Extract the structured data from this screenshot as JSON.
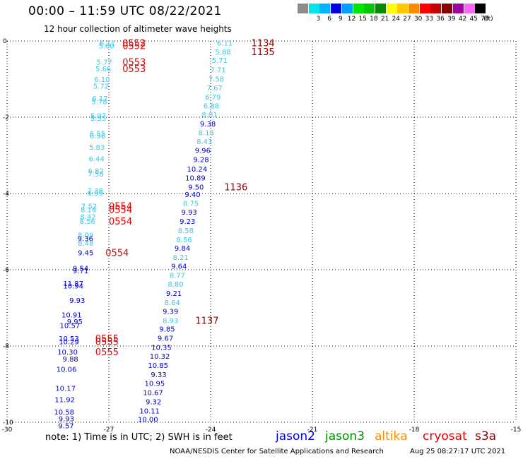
{
  "header": {
    "title": "00:00 – 11:59 UTC 08/22/2021",
    "subtitle": "12 hour collection of altimeter wave heights"
  },
  "colorbar": {
    "unit_label": "(ft)",
    "bins": [
      {
        "label": "",
        "color": "#8c8c8c"
      },
      {
        "label": "3",
        "color": "#00e6e6"
      },
      {
        "label": "6",
        "color": "#00b4ff"
      },
      {
        "label": "9",
        "color": "#0000e6"
      },
      {
        "label": "12",
        "color": "#00a0ff"
      },
      {
        "label": "15",
        "color": "#00e600"
      },
      {
        "label": "18",
        "color": "#00c800"
      },
      {
        "label": "21",
        "color": "#008c00"
      },
      {
        "label": "24",
        "color": "#ffff00"
      },
      {
        "label": "27",
        "color": "#ffc800"
      },
      {
        "label": "30",
        "color": "#ff8c00"
      },
      {
        "label": "33",
        "color": "#ff0000"
      },
      {
        "label": "36",
        "color": "#c80000"
      },
      {
        "label": "39",
        "color": "#8c0000"
      },
      {
        "label": "42",
        "color": "#a000a0"
      },
      {
        "label": "45",
        "color": "#ff64ff"
      },
      {
        "label": "70",
        "color": "#000000"
      }
    ]
  },
  "chart_data": {
    "type": "scatter",
    "xlim": [
      -30,
      -15
    ],
    "ylim": [
      -10,
      0
    ],
    "x_ticks": [
      "-30",
      "-27",
      "-24",
      "-21",
      "-18",
      "-15"
    ],
    "y_ticks": [
      "0",
      "-2",
      "-4",
      "-6",
      "-8",
      "-10"
    ],
    "grid": true,
    "swh_labels": [
      {
        "x": -26.81,
        "y": -0.05,
        "v": "6.11",
        "c": "#3cc8e6"
      },
      {
        "x": -26.84,
        "y": -0.12,
        "v": "5.60",
        "c": "#3cc8e6"
      },
      {
        "x": -26.9,
        "y": -0.55,
        "v": "5.77",
        "c": "#3cc8e6"
      },
      {
        "x": -26.93,
        "y": -0.72,
        "v": "5.66",
        "c": "#3cc8e6"
      },
      {
        "x": -26.97,
        "y": -1.0,
        "v": "6.10",
        "c": "#3cc8e6"
      },
      {
        "x": -27.0,
        "y": -1.18,
        "v": "5.72",
        "c": "#3cc8e6"
      },
      {
        "x": -27.03,
        "y": -1.5,
        "v": "6.17",
        "c": "#3cc8e6"
      },
      {
        "x": -27.05,
        "y": -1.58,
        "v": "5.78",
        "c": "#3cc8e6"
      },
      {
        "x": -27.08,
        "y": -1.95,
        "v": "5.97",
        "c": "#3cc8e6"
      },
      {
        "x": -27.08,
        "y": -2.02,
        "v": "5.55",
        "c": "#3cc8e6"
      },
      {
        "x": -27.1,
        "y": -2.42,
        "v": "6.55",
        "c": "#3cc8e6"
      },
      {
        "x": -27.1,
        "y": -2.48,
        "v": "6.96",
        "c": "#3cc8e6"
      },
      {
        "x": -27.12,
        "y": -2.78,
        "v": "5.83",
        "c": "#3cc8e6"
      },
      {
        "x": -27.13,
        "y": -3.08,
        "v": "6.44",
        "c": "#3cc8e6"
      },
      {
        "x": -27.15,
        "y": -3.4,
        "v": "6.82",
        "c": "#3cc8e6"
      },
      {
        "x": -27.15,
        "y": -3.48,
        "v": "7.58",
        "c": "#3cc8e6"
      },
      {
        "x": -27.17,
        "y": -3.92,
        "v": "7.38",
        "c": "#3cc8e6"
      },
      {
        "x": -27.17,
        "y": -3.98,
        "v": "6.99",
        "c": "#3cc8e6"
      },
      {
        "x": -27.35,
        "y": -4.32,
        "v": "7.52",
        "c": "#3cc8e6"
      },
      {
        "x": -27.37,
        "y": -4.42,
        "v": "8.16",
        "c": "#3cc8e6"
      },
      {
        "x": -27.38,
        "y": -4.6,
        "v": "8.42",
        "c": "#3cc8e6"
      },
      {
        "x": -27.4,
        "y": -4.72,
        "v": "8.56",
        "c": "#3cc8e6"
      },
      {
        "x": -27.45,
        "y": -5.08,
        "v": "8.09",
        "c": "#3cc8e6"
      },
      {
        "x": -27.46,
        "y": -5.18,
        "v": "9.36",
        "c": "#0000c8"
      },
      {
        "x": -27.45,
        "y": -5.3,
        "v": "8.48",
        "c": "#3cc8e6"
      },
      {
        "x": -27.45,
        "y": -5.55,
        "v": "9.45",
        "c": "#0000c8"
      },
      {
        "x": -27.6,
        "y": -5.95,
        "v": "9.54",
        "c": "#0000c8"
      },
      {
        "x": -27.6,
        "y": -6.02,
        "v": "9.71",
        "c": "#0000c8"
      },
      {
        "x": -27.75,
        "y": -6.35,
        "v": "11.87",
        "c": "#0000c8"
      },
      {
        "x": -27.75,
        "y": -6.42,
        "v": "10.94",
        "c": "#0000c8"
      },
      {
        "x": -27.7,
        "y": -6.8,
        "v": "9.93",
        "c": "#0000c8"
      },
      {
        "x": -27.8,
        "y": -7.18,
        "v": "10.91",
        "c": "#0000c8"
      },
      {
        "x": -27.77,
        "y": -7.35,
        "v": "9.95",
        "c": "#0000c8"
      },
      {
        "x": -27.85,
        "y": -7.45,
        "v": "10.57",
        "c": "#0000c8"
      },
      {
        "x": -27.88,
        "y": -7.8,
        "v": "10.53",
        "c": "#0000c8"
      },
      {
        "x": -27.88,
        "y": -7.88,
        "v": "10.29",
        "c": "#0000c8"
      },
      {
        "x": -27.92,
        "y": -8.15,
        "v": "10.30",
        "c": "#0000c8"
      },
      {
        "x": -27.9,
        "y": -8.33,
        "v": "9.88",
        "c": "#0000c8"
      },
      {
        "x": -27.95,
        "y": -8.6,
        "v": "10.06",
        "c": "#0000c8"
      },
      {
        "x": -27.98,
        "y": -9.1,
        "v": "10.17",
        "c": "#0000c8"
      },
      {
        "x": -28.0,
        "y": -9.4,
        "v": "11.92",
        "c": "#0000c8"
      },
      {
        "x": -28.02,
        "y": -9.72,
        "v": "10.58",
        "c": "#0000c8"
      },
      {
        "x": -28.02,
        "y": -9.9,
        "v": "9.93",
        "c": "#0000c8"
      },
      {
        "x": -28.03,
        "y": -10.08,
        "v": "9.57",
        "c": "#0000c8"
      },
      {
        "x": -23.35,
        "y": -0.05,
        "v": "6.11",
        "c": "#3cc8e6"
      },
      {
        "x": -23.4,
        "y": -0.28,
        "v": "5.88",
        "c": "#3cc8e6"
      },
      {
        "x": -23.5,
        "y": -0.5,
        "v": "5.71",
        "c": "#3cc8e6"
      },
      {
        "x": -23.55,
        "y": -0.75,
        "v": "7.71",
        "c": "#3cc8e6"
      },
      {
        "x": -23.6,
        "y": -0.99,
        "v": "7.58",
        "c": "#3cc8e6"
      },
      {
        "x": -23.65,
        "y": -1.22,
        "v": "7.67",
        "c": "#3cc8e6"
      },
      {
        "x": -23.7,
        "y": -1.46,
        "v": "6.79",
        "c": "#3cc8e6"
      },
      {
        "x": -23.75,
        "y": -1.69,
        "v": "6.88",
        "c": "#3cc8e6"
      },
      {
        "x": -23.8,
        "y": -1.93,
        "v": "8.01",
        "c": "#3cc8e6"
      },
      {
        "x": -23.85,
        "y": -2.17,
        "v": "9.38",
        "c": "#0000c8"
      },
      {
        "x": -23.9,
        "y": -2.4,
        "v": "8.18",
        "c": "#3cc8e6"
      },
      {
        "x": -23.95,
        "y": -2.63,
        "v": "8.43",
        "c": "#3cc8e6"
      },
      {
        "x": -24.0,
        "y": -2.86,
        "v": "9.96",
        "c": "#0000c8"
      },
      {
        "x": -24.05,
        "y": -3.1,
        "v": "9.28",
        "c": "#0000c8"
      },
      {
        "x": -24.1,
        "y": -3.35,
        "v": "10.24",
        "c": "#0000c8"
      },
      {
        "x": -24.15,
        "y": -3.58,
        "v": "10.89",
        "c": "#0000c8"
      },
      {
        "x": -24.2,
        "y": -3.82,
        "v": "9.50",
        "c": "#0000c8"
      },
      {
        "x": -24.3,
        "y": -4.02,
        "v": "9.40",
        "c": "#0000c8"
      },
      {
        "x": -24.35,
        "y": -4.25,
        "v": "8.75",
        "c": "#3cc8e6"
      },
      {
        "x": -24.4,
        "y": -4.48,
        "v": "9.93",
        "c": "#0000c8"
      },
      {
        "x": -24.45,
        "y": -4.72,
        "v": "9.23",
        "c": "#0000c8"
      },
      {
        "x": -24.5,
        "y": -4.96,
        "v": "8.58",
        "c": "#3cc8e6"
      },
      {
        "x": -24.55,
        "y": -5.2,
        "v": "8.56",
        "c": "#3cc8e6"
      },
      {
        "x": -24.6,
        "y": -5.43,
        "v": "9.84",
        "c": "#0000c8"
      },
      {
        "x": -24.65,
        "y": -5.67,
        "v": "8.21",
        "c": "#3cc8e6"
      },
      {
        "x": -24.7,
        "y": -5.9,
        "v": "9.64",
        "c": "#0000c8"
      },
      {
        "x": -24.75,
        "y": -6.14,
        "v": "8.77",
        "c": "#3cc8e6"
      },
      {
        "x": -24.8,
        "y": -6.37,
        "v": "8.80",
        "c": "#3cc8e6"
      },
      {
        "x": -24.85,
        "y": -6.61,
        "v": "9.21",
        "c": "#0000c8"
      },
      {
        "x": -24.9,
        "y": -6.85,
        "v": "8.64",
        "c": "#3cc8e6"
      },
      {
        "x": -24.95,
        "y": -7.08,
        "v": "9.39",
        "c": "#0000c8"
      },
      {
        "x": -24.95,
        "y": -7.32,
        "v": "8.93",
        "c": "#3cc8e6"
      },
      {
        "x": -25.05,
        "y": -7.55,
        "v": "9.85",
        "c": "#0000c8"
      },
      {
        "x": -25.1,
        "y": -7.79,
        "v": "9.67",
        "c": "#0000c8"
      },
      {
        "x": -25.15,
        "y": -8.03,
        "v": "10.35",
        "c": "#0000c8"
      },
      {
        "x": -25.2,
        "y": -8.26,
        "v": "10.32",
        "c": "#0000c8"
      },
      {
        "x": -25.25,
        "y": -8.5,
        "v": "10.85",
        "c": "#0000c8"
      },
      {
        "x": -25.3,
        "y": -8.74,
        "v": "9.33",
        "c": "#0000c8"
      },
      {
        "x": -25.35,
        "y": -8.97,
        "v": "10.95",
        "c": "#0000c8"
      },
      {
        "x": -25.4,
        "y": -9.21,
        "v": "10.67",
        "c": "#0000c8"
      },
      {
        "x": -25.45,
        "y": -9.45,
        "v": "9.32",
        "c": "#0000c8"
      },
      {
        "x": -25.5,
        "y": -9.69,
        "v": "10.11",
        "c": "#0000c8"
      },
      {
        "x": -25.55,
        "y": -9.92,
        "v": "10.00",
        "c": "#0000c8"
      }
    ],
    "time_labels": [
      {
        "x": -26.6,
        "y": -0.05,
        "v": "0552",
        "c": "#e60000"
      },
      {
        "x": -26.6,
        "y": -0.12,
        "v": "0552",
        "c": "#e60000"
      },
      {
        "x": -26.6,
        "y": -0.55,
        "v": "0553",
        "c": "#e60000"
      },
      {
        "x": -26.6,
        "y": -0.72,
        "v": "0553",
        "c": "#e60000"
      },
      {
        "x": -27.0,
        "y": -4.32,
        "v": "0554",
        "c": "#e60000"
      },
      {
        "x": -27.0,
        "y": -4.42,
        "v": "0554",
        "c": "#e60000"
      },
      {
        "x": -27.0,
        "y": -4.72,
        "v": "0554",
        "c": "#e60000"
      },
      {
        "x": -27.1,
        "y": -5.55,
        "v": "0554",
        "c": "#e60000"
      },
      {
        "x": -27.4,
        "y": -7.8,
        "v": "0555",
        "c": "#e60000"
      },
      {
        "x": -27.4,
        "y": -7.88,
        "v": "0555",
        "c": "#e60000"
      },
      {
        "x": -27.4,
        "y": -8.15,
        "v": "0555",
        "c": "#e60000"
      },
      {
        "x": -22.8,
        "y": -0.05,
        "v": "1134",
        "c": "#8c0000"
      },
      {
        "x": -22.8,
        "y": -0.28,
        "v": "1135",
        "c": "#8c0000"
      },
      {
        "x": -23.6,
        "y": -3.82,
        "v": "1136",
        "c": "#8c0000"
      },
      {
        "x": -24.45,
        "y": -7.32,
        "v": "1137",
        "c": "#8c0000"
      }
    ]
  },
  "footer": {
    "note": "note: 1) Time is in UTC; 2) SWH is in feet",
    "satellites": [
      {
        "name": "jason2",
        "color": "#0000e6"
      },
      {
        "name": "jason3",
        "color": "#008c00"
      },
      {
        "name": "altika",
        "color": "#ff8c00"
      },
      {
        "name": "cryosat",
        "color": "#e60000"
      },
      {
        "name": "s3a",
        "color": "#8c0000"
      }
    ],
    "credit": "NOAA/NESDIS Center for Satellite Applications and Research",
    "timestamp": "Aug 25 08:27:17 UTC 2021"
  }
}
